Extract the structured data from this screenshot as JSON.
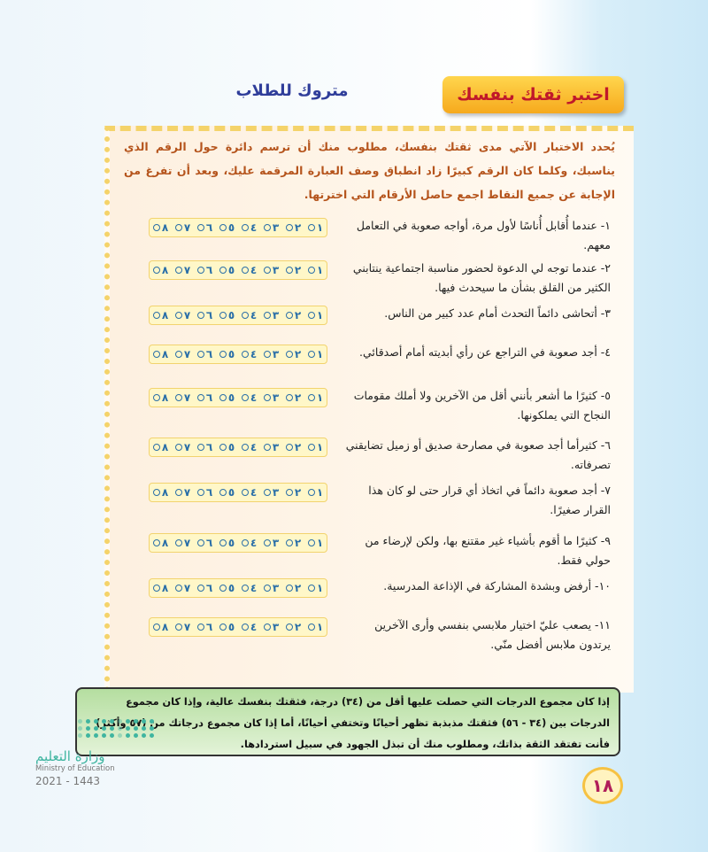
{
  "header": {
    "title": "اختبر ثقتك بنفسك",
    "subtitle": "متروك للطلاب"
  },
  "intro": "يُحدد الاختبار الآتي مدى ثقتك بنفسك، مطلوب منك أن ترسم دائرة حول الرقم الذي يناسبك، وكلما كان الرقم كبيرًا زاد انطباق وصف العبارة المرقمة عليك، وبعد أن تفرغ من الإجابة عن جميع النقاط اجمع حاصل الأرقام التي اخترتها.",
  "scale": [
    "١",
    "٢",
    "٣",
    "٤",
    "٥",
    "٦",
    "٧",
    "٨"
  ],
  "items": [
    {
      "text": "١- عندما أُقابل أُناسًا لأول مرة، أواجه صعوبة في التعامل معهم."
    },
    {
      "text": "٢- عندما توجه لي الدعوة لحضور مناسبة اجتماعية ينتابني الكثير من القلق بشأن ما سيحدث فيها."
    },
    {
      "text": "٣- أتحاشى دائماً التحدث أمام عدد كبير من الناس."
    },
    {
      "text": "٤- أجد صعوبة في التراجع عن رأي أبديته أمام أصدقائي."
    },
    {
      "text": "٥- كثيرًا ما أشعر بأنني أقل من الآخرين ولا أملك مقومات النجاح التي يملكونها."
    },
    {
      "text": "٦- كثيرأما أجد صعوبة في مصارحة صديق أو زميل تضايقني تصرفاته."
    },
    {
      "text": "٧- أجد صعوبة دائماً في اتخاذ أي قرار حتى لو كان هذا القرار صغيرًا."
    },
    {
      "text": "٩- كثيرًا ما أقوم بأشياء غير مقتنع بها، ولكن لإرضاء من حولي فقط."
    },
    {
      "text": "١٠- أرفض وبشدة المشاركة في الإذاعة المدرسية."
    },
    {
      "text": "١١- يصعب عليّ اختيار ملابسي بنفسي وأرى الآخرين يرتدون ملابس أفضل منّي."
    }
  ],
  "result": "إذا كان مجموع الدرجات التي حصلت عليها أقل من (٣٤) درجة، فثقتك بنفسك عالية، وإذا كان مجموع الدرجات بين (٣٤ - ٥٦) فثقتك مذبذبة تظهر أحيانًا وتختفي أحيانًا، أما إذا كان مجموع درجاتك من (٥٧ وأكثر) فأنت تفتقد الثقة بذاتك، ومطلوب منك أن تبذل الجهود في سبيل استردادها.",
  "page_number": "١٨",
  "logo": {
    "arabic": "وزارة التعليم",
    "english": "Ministry of Education",
    "year": "2021 - 1443"
  },
  "colors": {
    "title_bg": "#f6a91d",
    "title_text": "#c0182a",
    "subtitle": "#2f3d9a",
    "intro": "#b5541c",
    "result_bg": "#b5dea0"
  }
}
